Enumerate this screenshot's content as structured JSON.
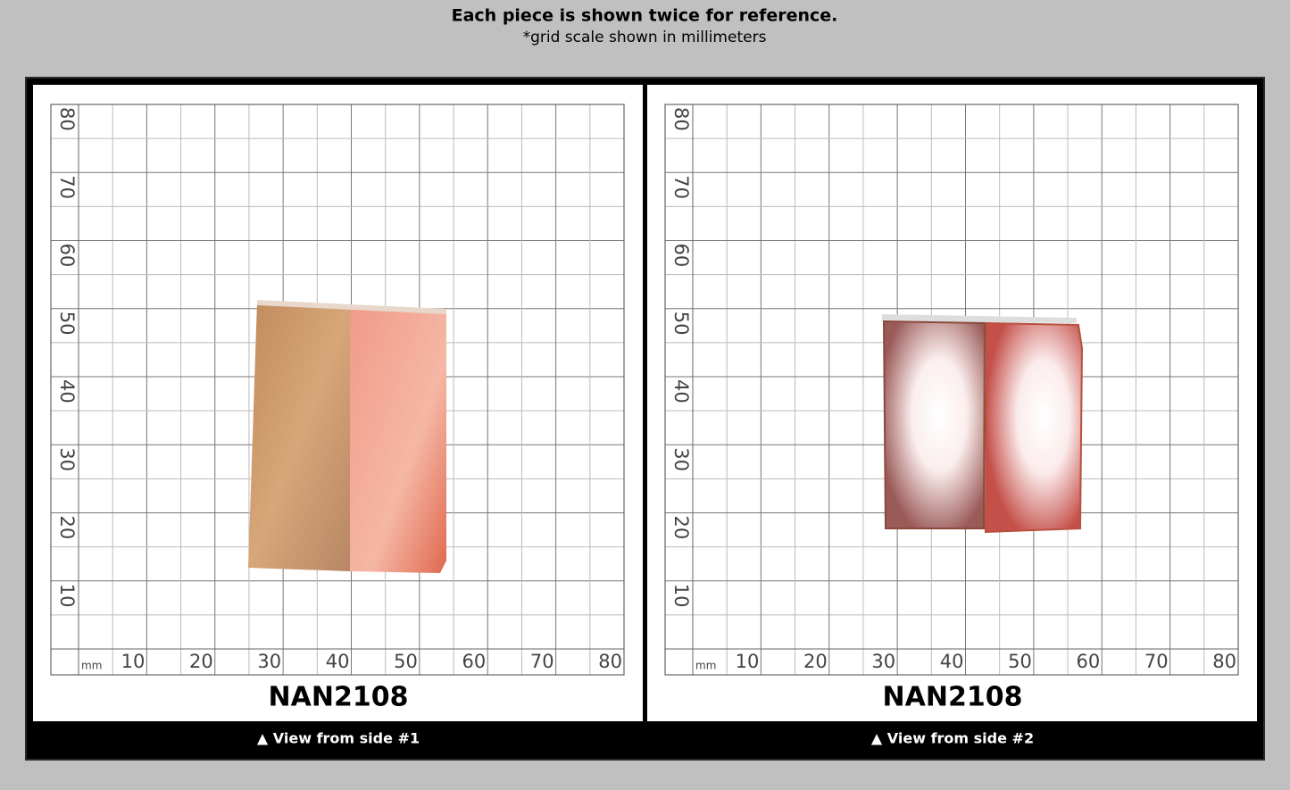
{
  "header": {
    "title": "Each piece is shown twice for reference.",
    "subtitle": "*grid scale shown in millimeters"
  },
  "panels": [
    {
      "grid": {
        "unit": "mm",
        "x_labels": [
          10,
          20,
          30,
          40,
          50,
          60,
          70,
          80
        ],
        "y_labels": [
          10,
          20,
          30,
          40,
          50,
          60,
          70,
          80
        ]
      },
      "label": "NAN2108",
      "caption": "▲ View from side #1"
    },
    {
      "grid": {
        "unit": "mm",
        "x_labels": [
          10,
          20,
          30,
          40,
          50,
          60,
          70,
          80
        ],
        "y_labels": [
          10,
          20,
          30,
          40,
          50,
          60,
          70,
          80
        ]
      },
      "label": "NAN2108",
      "caption": "▲ View from side #2"
    }
  ]
}
